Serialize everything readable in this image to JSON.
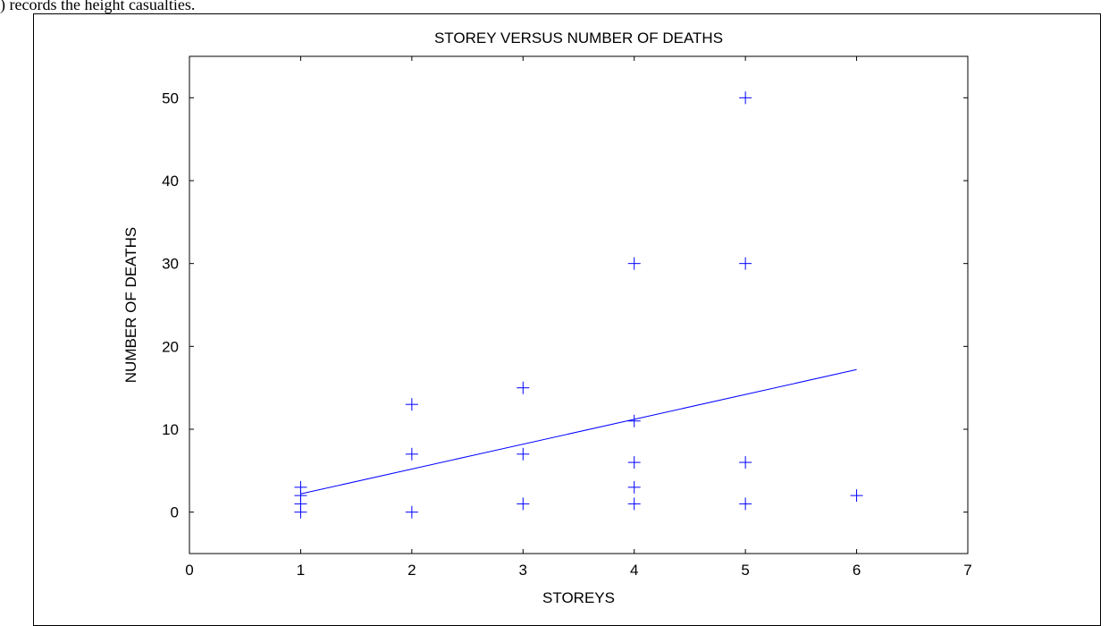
{
  "caption": ") records the height casualties.",
  "chart_data": {
    "type": "scatter",
    "title": "STOREY VERSUS NUMBER OF DEATHS",
    "xlabel": "STOREYS",
    "ylabel": "NUMBER OF DEATHS",
    "xlim": [
      0,
      7
    ],
    "ylim": [
      -5,
      55
    ],
    "xticks": [
      0,
      1,
      2,
      3,
      4,
      5,
      6,
      7
    ],
    "yticks": [
      0,
      10,
      20,
      30,
      40,
      50
    ],
    "marker": "+",
    "color": "#0000ff",
    "grid": false,
    "points": [
      {
        "x": 1,
        "y": 0
      },
      {
        "x": 1,
        "y": 1
      },
      {
        "x": 1,
        "y": 2
      },
      {
        "x": 1,
        "y": 3
      },
      {
        "x": 2,
        "y": 0
      },
      {
        "x": 2,
        "y": 7
      },
      {
        "x": 2,
        "y": 13
      },
      {
        "x": 3,
        "y": 1
      },
      {
        "x": 3,
        "y": 7
      },
      {
        "x": 3,
        "y": 15
      },
      {
        "x": 4,
        "y": 1
      },
      {
        "x": 4,
        "y": 3
      },
      {
        "x": 4,
        "y": 6
      },
      {
        "x": 4,
        "y": 11
      },
      {
        "x": 4,
        "y": 30
      },
      {
        "x": 5,
        "y": 1
      },
      {
        "x": 5,
        "y": 6
      },
      {
        "x": 5,
        "y": 30
      },
      {
        "x": 5,
        "y": 50
      },
      {
        "x": 6,
        "y": 2
      }
    ],
    "fit_line": {
      "type": "line",
      "points": [
        {
          "x": 1,
          "y": 2.2
        },
        {
          "x": 6,
          "y": 17.2
        }
      ]
    }
  }
}
